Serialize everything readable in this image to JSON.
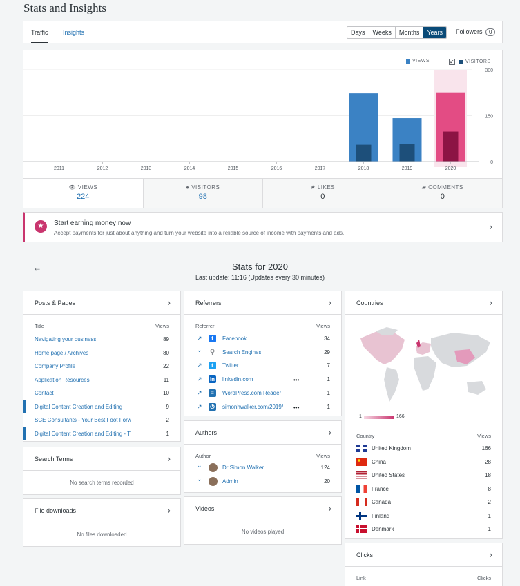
{
  "page": {
    "title": "Stats and Insights"
  },
  "tabs": {
    "traffic": "Traffic",
    "insights": "Insights"
  },
  "periods": [
    "Days",
    "Weeks",
    "Months",
    "Years"
  ],
  "selected_period": "Years",
  "followers": {
    "label": "Followers",
    "count": "0"
  },
  "legend": {
    "views": "VIEWS",
    "visitors": "VISITORS",
    "check": "✓"
  },
  "chart_data": {
    "type": "bar",
    "categories": [
      "2011",
      "2012",
      "2013",
      "2014",
      "2015",
      "2016",
      "2017",
      "2018",
      "2019",
      "2020"
    ],
    "series": [
      {
        "name": "VIEWS",
        "values": [
          0,
          0,
          0,
          0,
          0,
          0,
          0,
          223,
          142,
          224
        ]
      },
      {
        "name": "VISITORS",
        "values": [
          0,
          0,
          0,
          0,
          0,
          0,
          0,
          55,
          58,
          98
        ]
      }
    ],
    "highlight": "2020",
    "ylim": [
      0,
      300
    ],
    "yticks": [
      "300",
      "150",
      "0"
    ],
    "colors": {
      "views": "#3b82c4",
      "visitors": "#1d4f7a",
      "views_sel": "#e34c84",
      "visitors_sel": "#8c1444",
      "highlight_bg": "#f9e4ec"
    }
  },
  "summary": {
    "views": {
      "label": "VIEWS",
      "value": "224"
    },
    "visitors": {
      "label": "VISITORS",
      "value": "98"
    },
    "likes": {
      "label": "LIKES",
      "value": "0"
    },
    "comments": {
      "label": "COMMENTS",
      "value": "0"
    }
  },
  "promo": {
    "title": "Start earning money now",
    "subtitle": "Accept payments for just about anything and turn your website into a reliable source of income with payments and ads."
  },
  "stats_for": "Stats for 2020",
  "last_update": "Last update: 11:16 (Updates every 30 minutes)",
  "posts": {
    "title": "Posts & Pages",
    "col_title": "Title",
    "col_views": "Views",
    "rows": [
      {
        "label": "Navigating your business",
        "value": "89"
      },
      {
        "label": "Home page / Archives",
        "value": "80"
      },
      {
        "label": "Company Profile",
        "value": "22"
      },
      {
        "label": "Application Resources",
        "value": "11"
      },
      {
        "label": "Contact",
        "value": "10"
      },
      {
        "label": "Digital Content Creation and Editing",
        "value": "9"
      },
      {
        "label": "SCE Consultants - Your Best Foot Forwa",
        "value": "2"
      },
      {
        "label": "Digital Content Creation and Editing - Tr",
        "value": "1"
      }
    ]
  },
  "search_terms": {
    "title": "Search Terms",
    "empty": "No search terms recorded"
  },
  "downloads": {
    "title": "File downloads",
    "empty": "No files downloaded"
  },
  "referrers": {
    "title": "Referrers",
    "col_ref": "Referrer",
    "col_views": "Views",
    "rows": [
      {
        "label": "Facebook",
        "value": "34",
        "icon": "facebook-icon"
      },
      {
        "label": "Search Engines",
        "value": "29",
        "icon": "search-icon"
      },
      {
        "label": "Twitter",
        "value": "7",
        "icon": "twitter-icon"
      },
      {
        "label": "linkedin.com",
        "value": "1",
        "icon": "linkedin-icon"
      },
      {
        "label": "WordPress.com Reader",
        "value": "1",
        "icon": "reader-icon"
      },
      {
        "label": "simonhwalker.com/2019/",
        "value": "1",
        "icon": "power-icon"
      }
    ]
  },
  "authors": {
    "title": "Authors",
    "col_author": "Author",
    "col_views": "Views",
    "rows": [
      {
        "label": "Dr Simon Walker",
        "value": "124"
      },
      {
        "label": "Admin",
        "value": "20"
      }
    ]
  },
  "videos": {
    "title": "Videos",
    "empty": "No videos played"
  },
  "countries": {
    "title": "Countries",
    "scale_min": "1",
    "scale_max": "166",
    "col_country": "Country",
    "col_views": "Views",
    "rows": [
      {
        "label": "United Kingdom",
        "value": "166"
      },
      {
        "label": "China",
        "value": "28"
      },
      {
        "label": "United States",
        "value": "18"
      },
      {
        "label": "France",
        "value": "8"
      },
      {
        "label": "Canada",
        "value": "2"
      },
      {
        "label": "Finland",
        "value": "1"
      },
      {
        "label": "Denmark",
        "value": "1"
      }
    ]
  },
  "clicks": {
    "title": "Clicks",
    "col_link": "Link",
    "col_clicks": "Clicks"
  }
}
